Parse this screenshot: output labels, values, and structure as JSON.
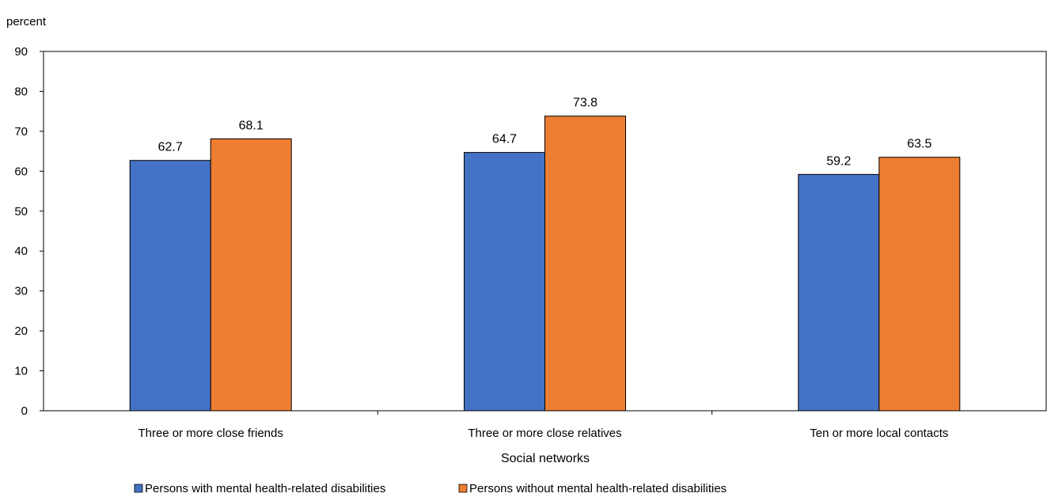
{
  "chart_data": {
    "type": "bar",
    "ylabel": "percent",
    "xlabel": "Social networks",
    "ylim": [
      0,
      90
    ],
    "yticks": [
      0,
      10,
      20,
      30,
      40,
      50,
      60,
      70,
      80,
      90
    ],
    "grid": false,
    "legend_position": "bottom",
    "categories": [
      "Three or more close friends",
      "Three or more close relatives",
      "Ten or more local contacts"
    ],
    "series": [
      {
        "name": "Persons with mental health-related disabilities",
        "color": "#4472C4",
        "values": [
          62.7,
          64.7,
          59.2
        ],
        "labels": [
          "62.7",
          "64.7",
          "59.2"
        ]
      },
      {
        "name": "Persons without mental health-related disabilities",
        "color": "#ED7D31",
        "values": [
          68.1,
          73.8,
          63.5
        ],
        "labels": [
          "68.1",
          "73.8",
          "63.5"
        ]
      }
    ]
  }
}
